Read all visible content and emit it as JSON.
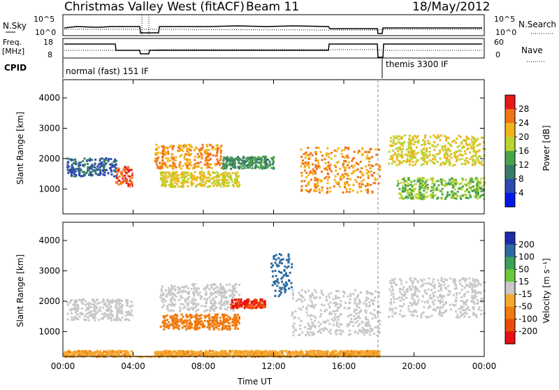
{
  "header": {
    "radar": "Christmas Valley West (fitACF)",
    "beam": "Beam 11",
    "date": "18/May/2012"
  },
  "panels": {
    "nsky": {
      "left_label": "N.Sky",
      "right_label": "N.Search",
      "left_ticks": [
        "10^5",
        "10^0"
      ],
      "right_ticks": [
        "10^5",
        "10^0"
      ]
    },
    "freq": {
      "left_label_1": "Freq.",
      "left_label_2": "[MHz]",
      "right_label": "Nave",
      "left_ticks": [
        "18",
        "8"
      ],
      "right_ticks": [
        "60",
        "0"
      ]
    },
    "cpid": {
      "label": "CPID",
      "segments": [
        {
          "text": "normal (fast) 151 IF",
          "start": "00:00",
          "end": "18:00"
        },
        {
          "text": "themis 3300 IF",
          "start": "18:00",
          "end": "24:00"
        }
      ]
    }
  },
  "axes": {
    "xlabel": "Time UT",
    "x_ticks": [
      "00:00",
      "04:00",
      "08:00",
      "12:00",
      "16:00",
      "20:00",
      "00:00"
    ],
    "ylabel": "Slant Range [km]",
    "y_ticks": [
      "1000",
      "2000",
      "3000",
      "4000"
    ]
  },
  "colorbars": {
    "power": {
      "label": "Power [dB]",
      "ticks": [
        "4",
        "8",
        "12",
        "16",
        "20",
        "24",
        "28"
      ],
      "colors": [
        "#0018e8",
        "#2c4ab0",
        "#3a7a6a",
        "#49a44a",
        "#b8d430",
        "#f2b418",
        "#f27418",
        "#e81818"
      ]
    },
    "velocity": {
      "label": "Velocity [m s⁻¹]",
      "ticks": [
        "200",
        "100",
        "50",
        "15",
        "-15",
        "-50",
        "-100",
        "-200"
      ],
      "colors": [
        "#1c2ca8",
        "#2c6aa0",
        "#3ca058",
        "#6cc83c",
        "#c8c8c8",
        "#f4a830",
        "#f07a10",
        "#ec4a08",
        "#e81010"
      ]
    }
  },
  "chart_data": [
    {
      "type": "heatmap",
      "title": "Power [dB]",
      "xlabel": "Time UT",
      "ylabel": "Slant Range [km]",
      "xlim": [
        0,
        24
      ],
      "ylim": [
        180,
        4600
      ],
      "zlim": [
        0,
        30
      ],
      "data_gap_hours": [
        [
          4.0,
          5.2
        ]
      ],
      "features": [
        {
          "t": [
            0.2,
            3.0
          ],
          "range_km": [
            1450,
            2050
          ],
          "power_db": 8
        },
        {
          "t": [
            3.0,
            4.0
          ],
          "range_km": [
            1100,
            1800
          ],
          "power_db": 28
        },
        {
          "t": [
            5.2,
            9.0
          ],
          "range_km": [
            1700,
            2500
          ],
          "power_db": 24
        },
        {
          "t": [
            5.5,
            10.0
          ],
          "range_km": [
            1100,
            1600
          ],
          "power_db": 20
        },
        {
          "t": [
            9.0,
            12.0
          ],
          "range_km": [
            1700,
            2100
          ],
          "power_db": 12
        },
        {
          "t": [
            13.5,
            18.0
          ],
          "range_km": [
            900,
            2400
          ],
          "power_db": 24
        },
        {
          "t": [
            18.5,
            24.0
          ],
          "range_km": [
            1800,
            2800
          ],
          "power_db": 20
        },
        {
          "t": [
            19.0,
            24.0
          ],
          "range_km": [
            700,
            1400
          ],
          "power_db": 16
        }
      ]
    },
    {
      "type": "heatmap",
      "title": "Velocity [m s⁻¹]",
      "xlabel": "Time UT",
      "ylabel": "Slant Range [km]",
      "xlim": [
        0,
        24
      ],
      "ylim": [
        180,
        4600
      ],
      "zlim": [
        -200,
        200
      ],
      "data_gap_hours": [
        [
          4.0,
          5.2
        ]
      ],
      "features": [
        {
          "t": [
            0.2,
            4.0
          ],
          "range_km": [
            1400,
            2100
          ],
          "velocity": 0
        },
        {
          "t": [
            5.5,
            10.0
          ],
          "range_km": [
            1700,
            2600
          ],
          "velocity": 0
        },
        {
          "t": [
            5.5,
            10.0
          ],
          "range_km": [
            1100,
            1600
          ],
          "velocity": -80
        },
        {
          "t": [
            9.5,
            11.5
          ],
          "range_km": [
            1800,
            2100
          ],
          "velocity": -200
        },
        {
          "t": [
            11.8,
            13.0
          ],
          "range_km": [
            2200,
            3600
          ],
          "velocity": 150
        },
        {
          "t": [
            13.0,
            18.0
          ],
          "range_km": [
            900,
            2400
          ],
          "velocity": 0
        },
        {
          "t": [
            18.5,
            24.0
          ],
          "range_km": [
            1500,
            2800
          ],
          "velocity": 0
        },
        {
          "t": [
            0.0,
            18.0
          ],
          "range_km": [
            200,
            400
          ],
          "velocity": -40
        }
      ]
    }
  ]
}
